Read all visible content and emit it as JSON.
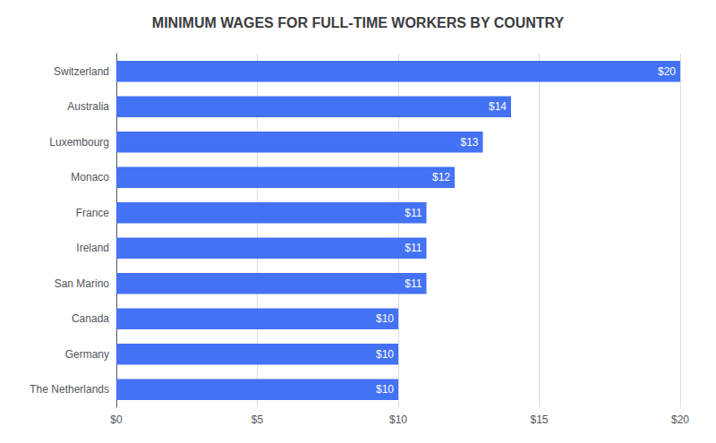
{
  "chart_data": {
    "type": "bar",
    "orientation": "horizontal",
    "title": "MINIMUM WAGES FOR FULL-TIME WORKERS BY COUNTRY",
    "categories": [
      "Switzerland",
      "Australia",
      "Luxembourg",
      "Monaco",
      "France",
      "Ireland",
      "San Marino",
      "Canada",
      "Germany",
      "The Netherlands"
    ],
    "values": [
      20,
      14,
      13,
      12,
      11,
      11,
      11,
      10,
      10,
      10
    ],
    "value_labels": [
      "$20",
      "$14",
      "$13",
      "$12",
      "$11",
      "$11",
      "$11",
      "$10",
      "$10",
      "$10"
    ],
    "data_labels": true,
    "color": "#4472F5",
    "xlim": [
      0,
      20
    ],
    "xticks": [
      {
        "value": 0,
        "label": "$0"
      },
      {
        "value": 5,
        "label": "$5"
      },
      {
        "value": 10,
        "label": "$10"
      },
      {
        "value": 15,
        "label": "$15"
      },
      {
        "value": 20,
        "label": "$20"
      }
    ],
    "grid": true
  }
}
